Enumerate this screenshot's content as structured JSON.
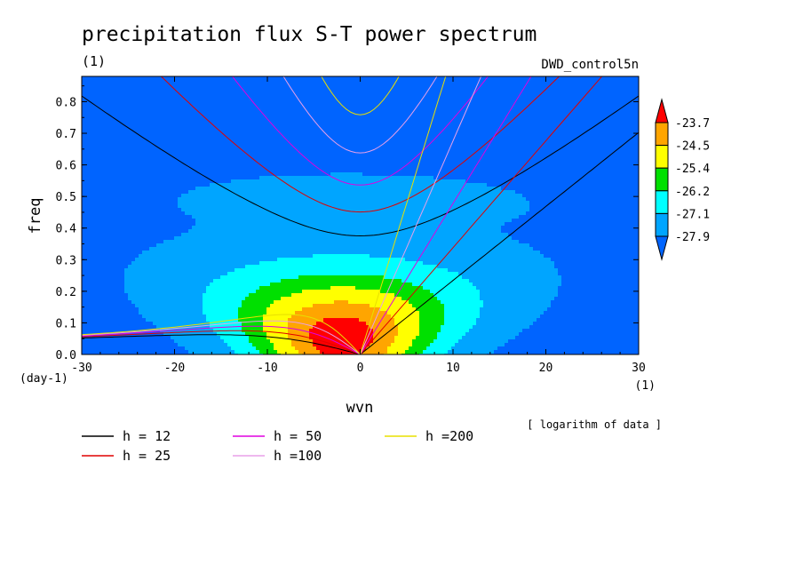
{
  "chart_data": {
    "type": "heatmap",
    "title": "precipitation flux S-T power spectrum",
    "subtitle_left": "(1)",
    "subtitle_right": "DWD_control5n",
    "xlabel": "wvn",
    "ylabel": "freq",
    "x_unit": "(1)",
    "y_unit": "(day-1)",
    "xlim": [
      -30,
      30
    ],
    "ylim": [
      0,
      0.88
    ],
    "x_ticks": [
      -30,
      -20,
      -10,
      0,
      10,
      20,
      30
    ],
    "x_tick_labels": [
      "-30",
      "-20",
      "-10",
      "0",
      "10",
      "20",
      "30"
    ],
    "y_ticks": [
      0,
      0.1,
      0.2,
      0.3,
      0.4,
      0.5,
      0.6,
      0.7,
      0.8
    ],
    "y_tick_labels": [
      "0.0",
      "0.1",
      "0.2",
      "0.3",
      "0.4",
      "0.5",
      "0.6",
      "0.7",
      "0.8"
    ],
    "note": "[ logarithm of data ]",
    "colorbar": {
      "levels": [
        -23.7,
        -24.5,
        -25.4,
        -26.2,
        -27.1,
        -27.9
      ],
      "labels": [
        "-23.7",
        "-24.5",
        "-25.4",
        "-26.2",
        "-27.1",
        "-27.9"
      ],
      "colors": [
        "#ff0000",
        "#ffa500",
        "#ffff00",
        "#00e000",
        "#00ffff",
        "#00a5ff",
        "#0064ff"
      ]
    },
    "field": {
      "peak_value": -23.2,
      "peak_wvn": -2,
      "peak_freq": 0.05,
      "background": -28.1
    },
    "dispersion_curves": [
      {
        "label": "h = 12",
        "h": 12,
        "color": "#000000"
      },
      {
        "label": "h = 25",
        "h": 25,
        "color": "#e00000"
      },
      {
        "label": "h = 50",
        "h": 50,
        "color": "#e000e0"
      },
      {
        "label": "h =100",
        "h": 100,
        "color": "#e8a0e8"
      },
      {
        "label": "h =200",
        "h": 200,
        "color": "#e8e000"
      }
    ],
    "legend_placement": "bottom"
  }
}
